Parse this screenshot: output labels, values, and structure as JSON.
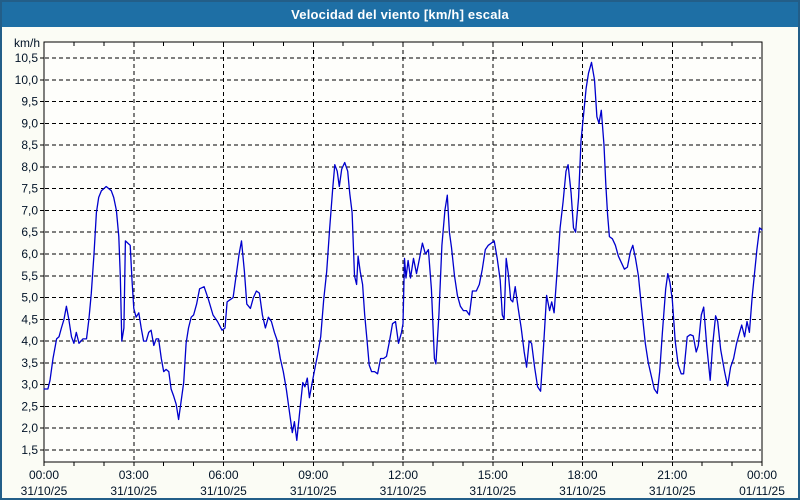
{
  "window": {
    "title": "Velocidad del viento [km/h] escala"
  },
  "colors": {
    "titlebar_bg": "#1e6fa5",
    "titlebar_text": "#ffffff",
    "page_bg": "#fbfcf5",
    "page_border": "#235e88",
    "plot_bg": "#fefefb",
    "grid": "#000000",
    "axis_frame": "#000000",
    "label_text": "#001226",
    "line": "#0000cd"
  },
  "chart_data": {
    "type": "line",
    "title": "Velocidad del viento [km/h] escala",
    "unit_label": "km/h",
    "ylabel": "km/h",
    "xlabel": "",
    "ylim": [
      1.5,
      10.5
    ],
    "ystep": 0.5,
    "grid": "dashed",
    "legend_position": "none",
    "y_tick_labels": [
      "1,5",
      "2,0",
      "2,5",
      "3,0",
      "3,5",
      "4,0",
      "4,5",
      "5,0",
      "5,5",
      "6,0",
      "6,5",
      "7,0",
      "7,5",
      "8,0",
      "8,5",
      "9,0",
      "9,5",
      "10,0",
      "10,5"
    ],
    "x_axis": {
      "span_hours": 24,
      "minor_tick_every_hours": 1,
      "major_tick_every_hours": 3,
      "ticks": [
        {
          "hour": 0,
          "time": "00:00",
          "date": "31/10/25"
        },
        {
          "hour": 3,
          "time": "03:00",
          "date": "31/10/25"
        },
        {
          "hour": 6,
          "time": "06:00",
          "date": "31/10/25"
        },
        {
          "hour": 9,
          "time": "09:00",
          "date": "31/10/25"
        },
        {
          "hour": 12,
          "time": "12:00",
          "date": "31/10/25"
        },
        {
          "hour": 15,
          "time": "15:00",
          "date": "31/10/25"
        },
        {
          "hour": 18,
          "time": "18:00",
          "date": "31/10/25"
        },
        {
          "hour": 21,
          "time": "21:00",
          "date": "31/10/25"
        },
        {
          "hour": 24,
          "time": "00:00",
          "date": "01/11/25"
        }
      ]
    },
    "series": [
      {
        "name": "Velocidad del viento [km/h]",
        "color": "#0000cd",
        "points": [
          [
            0,
            2.9
          ],
          [
            0.13,
            2.9
          ],
          [
            0.2,
            3.1
          ],
          [
            0.3,
            3.6
          ],
          [
            0.42,
            4.05
          ],
          [
            0.5,
            4.1
          ],
          [
            0.58,
            4.3
          ],
          [
            0.67,
            4.5
          ],
          [
            0.75,
            4.8
          ],
          [
            0.83,
            4.5
          ],
          [
            0.92,
            4.1
          ],
          [
            1,
            3.95
          ],
          [
            1.08,
            4.2
          ],
          [
            1.17,
            3.95
          ],
          [
            1.3,
            4.05
          ],
          [
            1.42,
            4.05
          ],
          [
            1.5,
            4.5
          ],
          [
            1.58,
            5.1
          ],
          [
            1.67,
            6
          ],
          [
            1.75,
            6.95
          ],
          [
            1.83,
            7.3
          ],
          [
            1.92,
            7.45
          ],
          [
            2,
            7.5
          ],
          [
            2.08,
            7.55
          ],
          [
            2.17,
            7.5
          ],
          [
            2.25,
            7.45
          ],
          [
            2.33,
            7.3
          ],
          [
            2.42,
            7
          ],
          [
            2.5,
            6.4
          ],
          [
            2.55,
            5.5
          ],
          [
            2.6,
            4
          ],
          [
            2.67,
            4.3
          ],
          [
            2.72,
            6.3
          ],
          [
            2.8,
            6.25
          ],
          [
            2.88,
            6.2
          ],
          [
            2.94,
            5.4
          ],
          [
            3,
            4.75
          ],
          [
            3.08,
            4.55
          ],
          [
            3.17,
            4.65
          ],
          [
            3.25,
            4.3
          ],
          [
            3.33,
            4
          ],
          [
            3.42,
            4
          ],
          [
            3.5,
            4.2
          ],
          [
            3.58,
            4.25
          ],
          [
            3.67,
            3.9
          ],
          [
            3.75,
            4.05
          ],
          [
            3.83,
            4.05
          ],
          [
            3.92,
            3.6
          ],
          [
            4,
            3.3
          ],
          [
            4.08,
            3.35
          ],
          [
            4.17,
            3.3
          ],
          [
            4.25,
            2.9
          ],
          [
            4.33,
            2.75
          ],
          [
            4.42,
            2.55
          ],
          [
            4.5,
            2.2
          ],
          [
            4.58,
            2.6
          ],
          [
            4.67,
            3.05
          ],
          [
            4.75,
            3.95
          ],
          [
            4.83,
            4.3
          ],
          [
            4.92,
            4.55
          ],
          [
            5,
            4.6
          ],
          [
            5.1,
            4.85
          ],
          [
            5.2,
            5.2
          ],
          [
            5.35,
            5.25
          ],
          [
            5.5,
            4.95
          ],
          [
            5.65,
            4.6
          ],
          [
            5.8,
            4.45
          ],
          [
            5.95,
            4.25
          ],
          [
            6.05,
            4.3
          ],
          [
            6.12,
            4.9
          ],
          [
            6.22,
            4.95
          ],
          [
            6.32,
            5
          ],
          [
            6.42,
            5.5
          ],
          [
            6.52,
            6
          ],
          [
            6.6,
            6.3
          ],
          [
            6.7,
            5.6
          ],
          [
            6.78,
            4.85
          ],
          [
            6.9,
            4.75
          ],
          [
            7,
            5
          ],
          [
            7.1,
            5.15
          ],
          [
            7.2,
            5.1
          ],
          [
            7.3,
            4.6
          ],
          [
            7.4,
            4.3
          ],
          [
            7.5,
            4.55
          ],
          [
            7.6,
            4.45
          ],
          [
            7.7,
            4.2
          ],
          [
            7.8,
            4
          ],
          [
            7.9,
            3.6
          ],
          [
            8,
            3.3
          ],
          [
            8.1,
            2.9
          ],
          [
            8.2,
            2.4
          ],
          [
            8.3,
            1.9
          ],
          [
            8.37,
            2.15
          ],
          [
            8.45,
            1.72
          ],
          [
            8.55,
            2.4
          ],
          [
            8.65,
            3.05
          ],
          [
            8.72,
            2.95
          ],
          [
            8.8,
            3.15
          ],
          [
            8.87,
            2.7
          ],
          [
            8.95,
            3
          ],
          [
            9.05,
            3.35
          ],
          [
            9.15,
            3.7
          ],
          [
            9.25,
            4.1
          ],
          [
            9.35,
            4.95
          ],
          [
            9.45,
            5.6
          ],
          [
            9.55,
            6.6
          ],
          [
            9.65,
            7.5
          ],
          [
            9.72,
            8.05
          ],
          [
            9.8,
            7.9
          ],
          [
            9.87,
            7.55
          ],
          [
            9.95,
            7.95
          ],
          [
            10.05,
            8.1
          ],
          [
            10.15,
            7.9
          ],
          [
            10.22,
            7.4
          ],
          [
            10.3,
            6.95
          ],
          [
            10.38,
            5.5
          ],
          [
            10.45,
            5.3
          ],
          [
            10.5,
            5.95
          ],
          [
            10.57,
            5.6
          ],
          [
            10.65,
            5.3
          ],
          [
            10.72,
            4.6
          ],
          [
            10.8,
            4
          ],
          [
            10.87,
            3.45
          ],
          [
            10.95,
            3.3
          ],
          [
            11.05,
            3.3
          ],
          [
            11.15,
            3.25
          ],
          [
            11.25,
            3.6
          ],
          [
            11.35,
            3.6
          ],
          [
            11.45,
            3.65
          ],
          [
            11.55,
            4
          ],
          [
            11.65,
            4.4
          ],
          [
            11.75,
            4.45
          ],
          [
            11.85,
            3.95
          ],
          [
            11.95,
            4.2
          ],
          [
            12,
            4.4
          ],
          [
            12.05,
            5.9
          ],
          [
            12.1,
            5.45
          ],
          [
            12.17,
            5.85
          ],
          [
            12.25,
            5.45
          ],
          [
            12.35,
            5.9
          ],
          [
            12.45,
            5.55
          ],
          [
            12.55,
            5.9
          ],
          [
            12.65,
            6.25
          ],
          [
            12.75,
            6
          ],
          [
            12.85,
            6.1
          ],
          [
            12.95,
            5.2
          ],
          [
            13.05,
            3.6
          ],
          [
            13.1,
            3.48
          ],
          [
            13.2,
            4.6
          ],
          [
            13.3,
            6.2
          ],
          [
            13.4,
            7
          ],
          [
            13.48,
            7.35
          ],
          [
            13.55,
            6.5
          ],
          [
            13.62,
            6.15
          ],
          [
            13.72,
            5.5
          ],
          [
            13.82,
            5.05
          ],
          [
            13.92,
            4.8
          ],
          [
            14.02,
            4.7
          ],
          [
            14.12,
            4.7
          ],
          [
            14.22,
            4.6
          ],
          [
            14.32,
            5.15
          ],
          [
            14.45,
            5.15
          ],
          [
            14.55,
            5.3
          ],
          [
            14.65,
            5.65
          ],
          [
            14.75,
            6.1
          ],
          [
            14.85,
            6.2
          ],
          [
            14.95,
            6.25
          ],
          [
            15.05,
            6.3
          ],
          [
            15.15,
            5.9
          ],
          [
            15.25,
            5.4
          ],
          [
            15.32,
            4.6
          ],
          [
            15.38,
            4.5
          ],
          [
            15.45,
            5.9
          ],
          [
            15.52,
            5.55
          ],
          [
            15.6,
            4.95
          ],
          [
            15.67,
            4.9
          ],
          [
            15.75,
            5.25
          ],
          [
            15.85,
            4.75
          ],
          [
            15.95,
            4.3
          ],
          [
            16.05,
            3.75
          ],
          [
            16.13,
            3.4
          ],
          [
            16.22,
            4
          ],
          [
            16.3,
            3.95
          ],
          [
            16.4,
            3.4
          ],
          [
            16.5,
            2.95
          ],
          [
            16.6,
            2.85
          ],
          [
            16.7,
            3.9
          ],
          [
            16.8,
            5.05
          ],
          [
            16.9,
            4.7
          ],
          [
            16.97,
            4.9
          ],
          [
            17.05,
            4.65
          ],
          [
            17.15,
            5.6
          ],
          [
            17.25,
            6.6
          ],
          [
            17.35,
            7.2
          ],
          [
            17.45,
            7.9
          ],
          [
            17.52,
            8.05
          ],
          [
            17.62,
            7.4
          ],
          [
            17.7,
            6.6
          ],
          [
            17.77,
            6.5
          ],
          [
            17.87,
            7.3
          ],
          [
            17.95,
            8.6
          ],
          [
            18.05,
            9.3
          ],
          [
            18.12,
            9.8
          ],
          [
            18.2,
            10.15
          ],
          [
            18.3,
            10.4
          ],
          [
            18.4,
            10
          ],
          [
            18.48,
            9.15
          ],
          [
            18.55,
            9
          ],
          [
            18.63,
            9.3
          ],
          [
            18.72,
            8.5
          ],
          [
            18.78,
            7.6
          ],
          [
            18.84,
            6.9
          ],
          [
            18.9,
            6.4
          ],
          [
            19,
            6.35
          ],
          [
            19.1,
            6.2
          ],
          [
            19.2,
            5.95
          ],
          [
            19.3,
            5.8
          ],
          [
            19.4,
            5.65
          ],
          [
            19.5,
            5.7
          ],
          [
            19.6,
            6.05
          ],
          [
            19.68,
            6.2
          ],
          [
            19.77,
            5.9
          ],
          [
            19.87,
            5.5
          ],
          [
            19.97,
            4.8
          ],
          [
            20.1,
            3.95
          ],
          [
            20.2,
            3.5
          ],
          [
            20.3,
            3.2
          ],
          [
            20.4,
            2.9
          ],
          [
            20.5,
            2.8
          ],
          [
            20.58,
            3.3
          ],
          [
            20.67,
            4.2
          ],
          [
            20.78,
            5.2
          ],
          [
            20.85,
            5.55
          ],
          [
            20.92,
            5.35
          ],
          [
            21,
            4.95
          ],
          [
            21.1,
            4
          ],
          [
            21.2,
            3.45
          ],
          [
            21.3,
            3.25
          ],
          [
            21.38,
            3.25
          ],
          [
            21.5,
            4.1
          ],
          [
            21.6,
            4.15
          ],
          [
            21.7,
            4.12
          ],
          [
            21.8,
            3.75
          ],
          [
            21.87,
            3.9
          ],
          [
            21.97,
            4.6
          ],
          [
            22.05,
            4.78
          ],
          [
            22.15,
            3.9
          ],
          [
            22.27,
            3.1
          ],
          [
            22.35,
            3.9
          ],
          [
            22.45,
            4.58
          ],
          [
            22.52,
            4.45
          ],
          [
            22.62,
            3.8
          ],
          [
            22.75,
            3.3
          ],
          [
            22.85,
            2.97
          ],
          [
            22.95,
            3.4
          ],
          [
            23.05,
            3.6
          ],
          [
            23.15,
            3.95
          ],
          [
            23.25,
            4.2
          ],
          [
            23.32,
            4.37
          ],
          [
            23.42,
            4.1
          ],
          [
            23.5,
            4.45
          ],
          [
            23.58,
            4.2
          ],
          [
            23.67,
            5
          ],
          [
            23.75,
            5.55
          ],
          [
            23.83,
            6.1
          ],
          [
            23.92,
            6.6
          ],
          [
            24,
            6.55
          ]
        ]
      }
    ]
  }
}
